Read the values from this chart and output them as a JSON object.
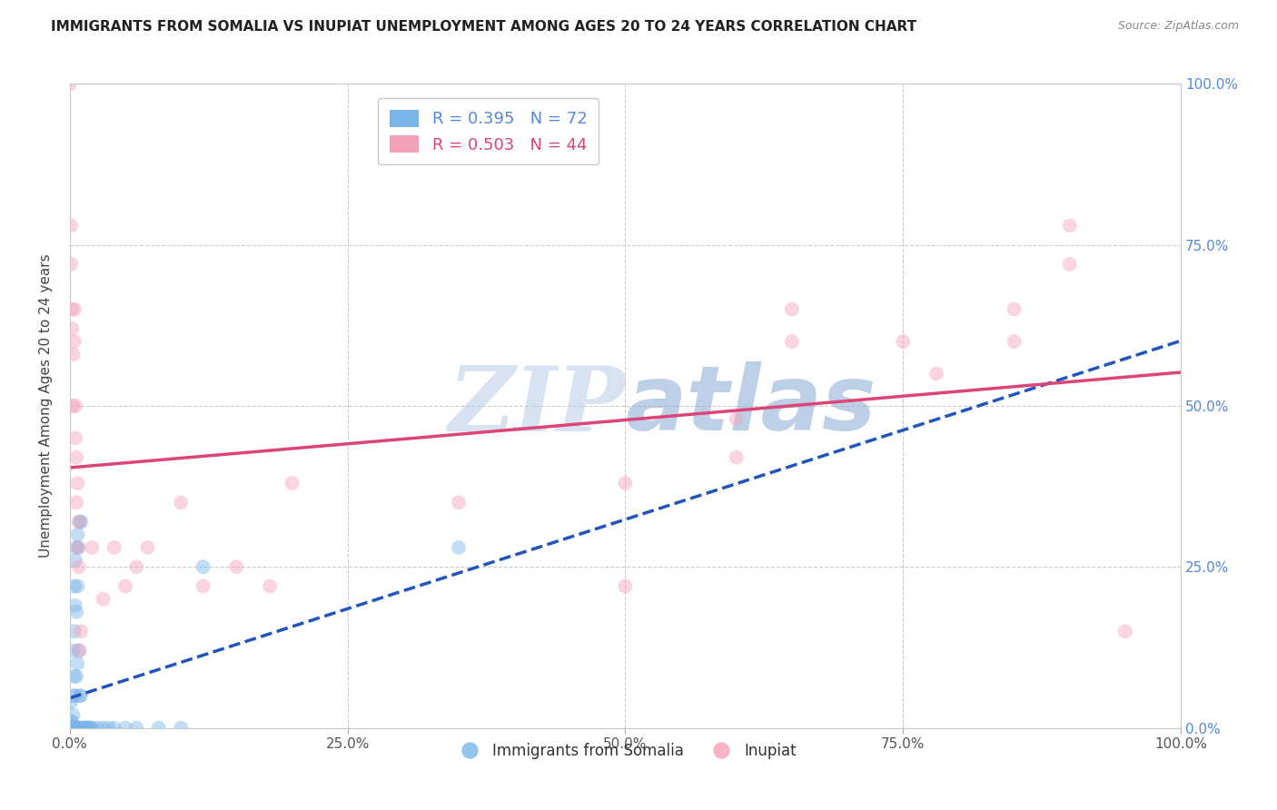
{
  "title": "IMMIGRANTS FROM SOMALIA VS INUPIAT UNEMPLOYMENT AMONG AGES 20 TO 24 YEARS CORRELATION CHART",
  "source": "Source: ZipAtlas.com",
  "ylabel": "Unemployment Among Ages 20 to 24 years",
  "xmin": 0.0,
  "xmax": 1.0,
  "ymin": 0.0,
  "ymax": 1.0,
  "xtick_labels": [
    "0.0%",
    "25.0%",
    "50.0%",
    "75.0%",
    "100.0%"
  ],
  "xtick_vals": [
    0.0,
    0.25,
    0.5,
    0.75,
    1.0
  ],
  "ytick_labels_right": [
    "0.0%",
    "25.0%",
    "50.0%",
    "75.0%",
    "100.0%"
  ],
  "ytick_vals": [
    0.0,
    0.25,
    0.5,
    0.75,
    1.0
  ],
  "legend_labels_bottom": [
    "Immigrants from Somalia",
    "Inupiat"
  ],
  "legend_text_1": "R = 0.395   N = 72",
  "legend_text_2": "R = 0.503   N = 44",
  "somalia_color": "#7ab4e8",
  "inupiat_color": "#f4a0b8",
  "somalia_line_color": "#2255bb",
  "inupiat_line_color": "#dd4477",
  "somalia_trend_style": "dashed",
  "inupiat_trend_style": "solid",
  "marker_size": 130,
  "marker_alpha": 0.45,
  "background_color": "#ffffff",
  "grid_color": "#cccccc",
  "watermark_zip": "ZIP",
  "watermark_atlas": "atlas",
  "somalia_points": [
    [
      0.001,
      0.0
    ],
    [
      0.001,
      0.01
    ],
    [
      0.002,
      0.0
    ],
    [
      0.001,
      0.04
    ],
    [
      0.002,
      0.0
    ],
    [
      0.003,
      0.0
    ],
    [
      0.001,
      0.0
    ],
    [
      0.004,
      0.0
    ],
    [
      0.001,
      0.0
    ],
    [
      0.002,
      0.0
    ],
    [
      0.003,
      0.02
    ],
    [
      0.005,
      0.0
    ],
    [
      0.001,
      0.0
    ],
    [
      0.002,
      0.01
    ],
    [
      0.003,
      0.0
    ],
    [
      0.004,
      0.0
    ],
    [
      0.001,
      0.0
    ],
    [
      0.002,
      0.0
    ],
    [
      0.003,
      0.0
    ],
    [
      0.001,
      0.0
    ],
    [
      0.008,
      0.0
    ],
    [
      0.006,
      0.0
    ],
    [
      0.007,
      0.0
    ],
    [
      0.001,
      0.0
    ],
    [
      0.001,
      0.0
    ],
    [
      0.002,
      0.0
    ],
    [
      0.003,
      0.0
    ],
    [
      0.001,
      0.0
    ],
    [
      0.002,
      0.0
    ],
    [
      0.001,
      0.0
    ],
    [
      0.001,
      0.0
    ],
    [
      0.002,
      0.0
    ],
    [
      0.003,
      0.12
    ],
    [
      0.004,
      0.22
    ],
    [
      0.005,
      0.19
    ],
    [
      0.004,
      0.15
    ],
    [
      0.005,
      0.26
    ],
    [
      0.006,
      0.28
    ],
    [
      0.007,
      0.3
    ],
    [
      0.006,
      0.18
    ],
    [
      0.007,
      0.22
    ],
    [
      0.008,
      0.28
    ],
    [
      0.009,
      0.32
    ],
    [
      0.01,
      0.32
    ],
    [
      0.003,
      0.05
    ],
    [
      0.004,
      0.08
    ],
    [
      0.005,
      0.05
    ],
    [
      0.006,
      0.08
    ],
    [
      0.007,
      0.1
    ],
    [
      0.008,
      0.12
    ],
    [
      0.009,
      0.05
    ],
    [
      0.01,
      0.05
    ],
    [
      0.011,
      0.0
    ],
    [
      0.012,
      0.0
    ],
    [
      0.013,
      0.0
    ],
    [
      0.014,
      0.0
    ],
    [
      0.015,
      0.0
    ],
    [
      0.016,
      0.0
    ],
    [
      0.017,
      0.0
    ],
    [
      0.018,
      0.0
    ],
    [
      0.019,
      0.0
    ],
    [
      0.02,
      0.0
    ],
    [
      0.025,
      0.0
    ],
    [
      0.03,
      0.0
    ],
    [
      0.035,
      0.0
    ],
    [
      0.04,
      0.0
    ],
    [
      0.05,
      0.0
    ],
    [
      0.06,
      0.0
    ],
    [
      0.08,
      0.0
    ],
    [
      0.1,
      0.0
    ],
    [
      0.12,
      0.25
    ],
    [
      0.35,
      0.28
    ]
  ],
  "inupiat_points": [
    [
      0.0,
      1.0
    ],
    [
      0.001,
      0.78
    ],
    [
      0.001,
      0.72
    ],
    [
      0.002,
      0.65
    ],
    [
      0.002,
      0.62
    ],
    [
      0.003,
      0.58
    ],
    [
      0.003,
      0.5
    ],
    [
      0.004,
      0.65
    ],
    [
      0.004,
      0.6
    ],
    [
      0.005,
      0.45
    ],
    [
      0.005,
      0.5
    ],
    [
      0.006,
      0.42
    ],
    [
      0.006,
      0.35
    ],
    [
      0.007,
      0.38
    ],
    [
      0.007,
      0.28
    ],
    [
      0.008,
      0.32
    ],
    [
      0.008,
      0.25
    ],
    [
      0.009,
      0.12
    ],
    [
      0.01,
      0.15
    ],
    [
      0.02,
      0.28
    ],
    [
      0.03,
      0.2
    ],
    [
      0.04,
      0.28
    ],
    [
      0.05,
      0.22
    ],
    [
      0.06,
      0.25
    ],
    [
      0.07,
      0.28
    ],
    [
      0.1,
      0.35
    ],
    [
      0.12,
      0.22
    ],
    [
      0.15,
      0.25
    ],
    [
      0.18,
      0.22
    ],
    [
      0.2,
      0.38
    ],
    [
      0.35,
      0.35
    ],
    [
      0.5,
      0.38
    ],
    [
      0.5,
      0.22
    ],
    [
      0.6,
      0.48
    ],
    [
      0.6,
      0.42
    ],
    [
      0.65,
      0.65
    ],
    [
      0.65,
      0.6
    ],
    [
      0.75,
      0.6
    ],
    [
      0.78,
      0.55
    ],
    [
      0.85,
      0.65
    ],
    [
      0.85,
      0.6
    ],
    [
      0.9,
      0.78
    ],
    [
      0.9,
      0.72
    ],
    [
      0.95,
      0.15
    ]
  ]
}
